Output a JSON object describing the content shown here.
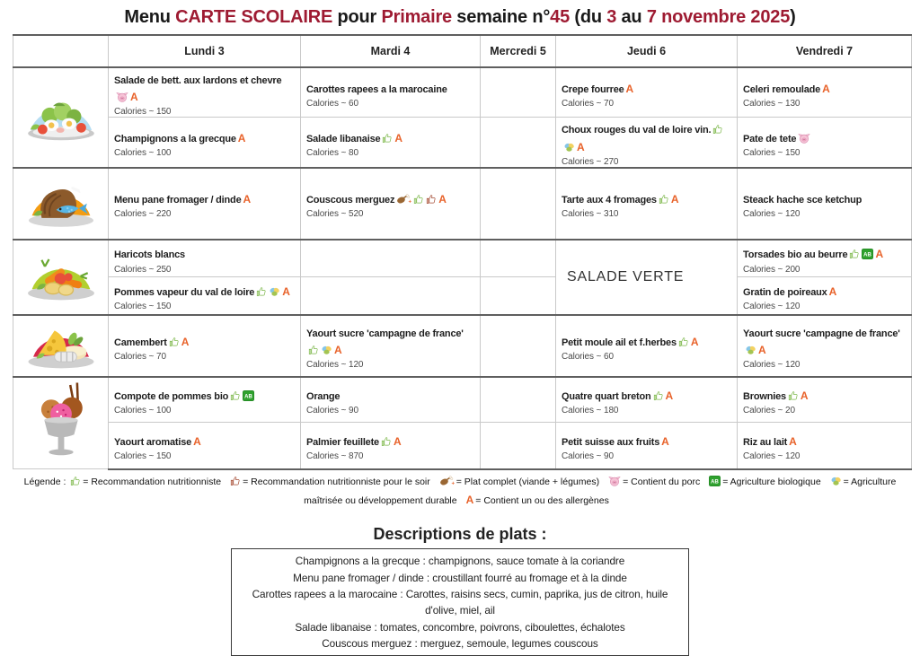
{
  "title": {
    "segments": [
      {
        "text": "Menu ",
        "color": "#1a1a1a"
      },
      {
        "text": "CARTE SCOLAIRE",
        "color": "#9e1b32"
      },
      {
        "text": " pour ",
        "color": "#1a1a1a"
      },
      {
        "text": "Primaire",
        "color": "#9e1b32"
      },
      {
        "text": " semaine n°",
        "color": "#1a1a1a"
      },
      {
        "text": "45",
        "color": "#9e1b32"
      },
      {
        "text": " (du ",
        "color": "#1a1a1a"
      },
      {
        "text": "3",
        "color": "#9e1b32"
      },
      {
        "text": " au ",
        "color": "#1a1a1a"
      },
      {
        "text": "7 novembre 2025",
        "color": "#9e1b32"
      },
      {
        "text": ")",
        "color": "#1a1a1a"
      }
    ]
  },
  "table": {
    "day_headers": [
      "Lundi 3",
      "Mardi 4",
      "Mercredi 5",
      "Jeudi 6",
      "Vendredi 7"
    ],
    "courses": [
      {
        "icon": "starter-plate",
        "days": [
          {
            "dishes": [
              {
                "name": "Salade de bett. aux lardons et chevre",
                "icons": [
                  "pork",
                  "allergen"
                ],
                "calories": "Calories ~ 150"
              },
              {
                "name": "Champignons a la grecque",
                "icons": [
                  "allergen"
                ],
                "calories": "Calories ~ 100"
              }
            ]
          },
          {
            "dishes": [
              {
                "name": "Carottes rapees a la marocaine",
                "icons": [],
                "calories": "Calories ~ 60"
              },
              {
                "name": "Salade libanaise",
                "icons": [
                  "nutrition",
                  "allergen"
                ],
                "calories": "Calories ~ 80"
              }
            ]
          },
          {
            "dishes": []
          },
          {
            "dishes": [
              {
                "name": "Crepe fourree",
                "icons": [
                  "allergen"
                ],
                "calories": "Calories ~ 70"
              },
              {
                "name": "Choux rouges du val de loire vin.",
                "icons": [
                  "nutrition",
                  "sustainable",
                  "allergen"
                ],
                "calories": "Calories ~ 270"
              }
            ]
          },
          {
            "dishes": [
              {
                "name": "Celeri remoulade",
                "icons": [
                  "allergen"
                ],
                "calories": "Calories ~ 130"
              },
              {
                "name": "Pate de tete",
                "icons": [
                  "pork"
                ],
                "calories": "Calories ~ 150"
              }
            ]
          }
        ]
      },
      {
        "icon": "main-plate",
        "days": [
          {
            "dishes": [
              {
                "name": "Menu pane fromager / dinde",
                "icons": [
                  "allergen"
                ],
                "calories": "Calories ~ 220"
              }
            ]
          },
          {
            "dishes": [
              {
                "name": "Couscous merguez",
                "icons": [
                  "complete-dish",
                  "nutrition",
                  "nutrition-evening",
                  "allergen"
                ],
                "calories": "Calories ~ 520"
              }
            ]
          },
          {
            "dishes": []
          },
          {
            "dishes": [
              {
                "name": "Tarte aux 4 fromages",
                "icons": [
                  "nutrition",
                  "allergen"
                ],
                "calories": "Calories ~ 310"
              }
            ]
          },
          {
            "dishes": [
              {
                "name": "Steack hache sce ketchup",
                "icons": [],
                "calories": "Calories ~ 120"
              }
            ]
          }
        ]
      },
      {
        "icon": "veg-plate",
        "days": [
          {
            "dishes": [
              {
                "name": "Haricots blancs",
                "icons": [],
                "calories": "Calories ~ 250"
              },
              {
                "name": "Pommes vapeur du val de loire",
                "icons": [
                  "nutrition",
                  "sustainable",
                  "allergen"
                ],
                "calories": "Calories ~ 150"
              }
            ]
          },
          {
            "dishes": []
          },
          {
            "dishes": []
          },
          {
            "span": true,
            "dishes": [
              {
                "name": "SALADE VERTE",
                "style": "large",
                "icons": []
              }
            ]
          },
          {
            "dishes": [
              {
                "name": "Torsades bio au beurre",
                "icons": [
                  "nutrition",
                  "bio",
                  "allergen"
                ],
                "calories": "Calories ~ 200"
              },
              {
                "name": "Gratin de poireaux",
                "icons": [
                  "allergen"
                ],
                "calories": "Calories ~ 120"
              }
            ]
          }
        ]
      },
      {
        "icon": "cheese-plate",
        "days": [
          {
            "dishes": [
              {
                "name": "Camembert",
                "icons": [
                  "nutrition",
                  "allergen"
                ],
                "calories": "Calories ~ 70"
              }
            ]
          },
          {
            "dishes": [
              {
                "name": "Yaourt sucre 'campagne de france'",
                "icons": [
                  "nutrition",
                  "sustainable",
                  "allergen"
                ],
                "calories": "Calories ~ 120"
              }
            ]
          },
          {
            "dishes": []
          },
          {
            "dishes": [
              {
                "name": "Petit moule ail et f.herbes",
                "icons": [
                  "nutrition",
                  "allergen"
                ],
                "calories": "Calories ~ 60"
              }
            ]
          },
          {
            "dishes": [
              {
                "name": "Yaourt sucre 'campagne de france'",
                "icons": [
                  "sustainable",
                  "allergen"
                ],
                "calories": "Calories ~ 120"
              }
            ]
          }
        ]
      },
      {
        "icon": "dessert-sundae",
        "days": [
          {
            "dishes": [
              {
                "name": "Compote de pommes bio",
                "icons": [
                  "nutrition",
                  "bio"
                ],
                "calories": "Calories ~ 100"
              },
              {
                "name": "Yaourt aromatise",
                "icons": [
                  "allergen"
                ],
                "calories": "Calories ~ 150"
              }
            ]
          },
          {
            "dishes": [
              {
                "name": "Orange",
                "icons": [],
                "calories": "Calories ~ 90"
              },
              {
                "name": "Palmier feuillete",
                "icons": [
                  "nutrition",
                  "allergen"
                ],
                "calories": "Calories ~ 870"
              }
            ]
          },
          {
            "dishes": []
          },
          {
            "dishes": [
              {
                "name": "Quatre quart breton",
                "icons": [
                  "nutrition",
                  "allergen"
                ],
                "calories": "Calories ~ 180"
              },
              {
                "name": "Petit suisse aux fruits",
                "icons": [
                  "allergen"
                ],
                "calories": "Calories ~ 90"
              }
            ]
          },
          {
            "dishes": [
              {
                "name": "Brownies",
                "icons": [
                  "nutrition",
                  "allergen"
                ],
                "calories": "Calories ~ 20"
              },
              {
                "name": "Riz au lait",
                "icons": [
                  "allergen"
                ],
                "calories": "Calories ~ 120"
              }
            ]
          }
        ]
      }
    ]
  },
  "legend": {
    "prefix": "Légende :",
    "items": [
      {
        "icon": "nutrition",
        "label": "= Recommandation nutritionniste"
      },
      {
        "icon": "nutrition-evening",
        "label": "= Recommandation nutritionniste pour le soir"
      },
      {
        "icon": "complete-dish",
        "label": "= Plat complet (viande + légumes)"
      },
      {
        "icon": "pork",
        "label": "= Contient du porc"
      },
      {
        "icon": "bio",
        "label": "= Agriculture biologique"
      },
      {
        "icon": "sustainable",
        "label": "= Agriculture maîtrisée ou développement durable"
      },
      {
        "icon": "allergen",
        "label": "= Contient un ou des allergènes"
      }
    ]
  },
  "descriptions": {
    "title": "Descriptions de plats :",
    "lines": [
      "Champignons a la grecque : champignons, sauce tomate à la coriandre",
      "Menu pane fromager / dinde : croustillant fourré au fromage et à la dinde",
      "Carottes rapees a la marocaine : Carottes, raisins secs, cumin, paprika, jus de citron, huile d'olive, miel, ail",
      "Salade libanaise : tomates, concombre, poivrons, ciboulettes, échalotes",
      "Couscous merguez : merguez, semoule, legumes couscous"
    ]
  },
  "colors": {
    "accent_red": "#9e1b32",
    "allergen_orange": "#e8622a",
    "bio_green": "#2fa12e"
  }
}
